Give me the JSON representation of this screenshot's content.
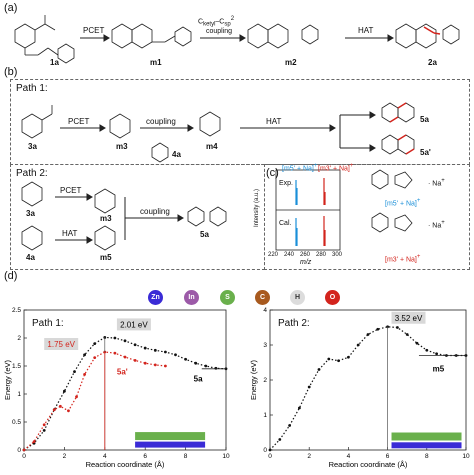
{
  "panel_labels": {
    "a": "(a)",
    "b": "(b)",
    "c": "(c)",
    "d": "(d)"
  },
  "panel_a": {
    "compounds": [
      "1a",
      "m1",
      "m2",
      "2a"
    ],
    "arrows": [
      "PCET",
      "C",
      "HAT"
    ],
    "arrow2_sub": "ketyl",
    "arrow2_mid": "–C",
    "arrow2_sub2": "sp",
    "arrow2_sup": "2",
    "arrow2_line2": "coupling"
  },
  "path1": {
    "title": "Path 1:",
    "compounds": [
      "3a",
      "m3",
      "4a",
      "m4",
      "5a",
      "5a'"
    ],
    "arrows": [
      "PCET",
      "HAT"
    ],
    "coupling_label": "coupling"
  },
  "path2": {
    "title": "Path 2:",
    "compounds": [
      "3a",
      "m3",
      "4a",
      "m5",
      "5a"
    ],
    "arrows": [
      "PCET",
      "HAT",
      "coupling"
    ]
  },
  "panel_c": {
    "legend_left": "[m5' + Na]",
    "legend_right": "[m3' + Na]",
    "legend_sup": "+",
    "row_exp": "Exp.",
    "row_cal": "Cal.",
    "ylabel": "Intensity (a.u.)",
    "xlabel": "m/z",
    "xticks": [
      "220",
      "240",
      "260",
      "280",
      "300"
    ],
    "struct1_label": "[m5' + Na]",
    "struct2_label": "[m3' + Na]",
    "na": "Na"
  },
  "atoms": [
    {
      "symbol": "Zn",
      "color": "#3a2bd6"
    },
    {
      "symbol": "In",
      "color": "#9c5aa8"
    },
    {
      "symbol": "S",
      "color": "#6ab04c"
    },
    {
      "symbol": "C",
      "color": "#a85a1f"
    },
    {
      "symbol": "H",
      "color": "#dcdcdc"
    },
    {
      "symbol": "O",
      "color": "#d3241d"
    }
  ],
  "chart_data": [
    {
      "type": "line",
      "title": "Path 1:",
      "xlabel": "Reaction coordinate (Å)",
      "ylabel": "Energy (eV)",
      "xlim": [
        0,
        10
      ],
      "ylim": [
        0,
        2.5
      ],
      "xticks": [
        0,
        2,
        4,
        6,
        8,
        10
      ],
      "yticks": [
        0,
        0.5,
        1,
        1.5,
        2,
        2.5
      ],
      "series": [
        {
          "name": "",
          "color": "#111111",
          "x": [
            0,
            0.5,
            1,
            1.5,
            2,
            2.5,
            3,
            3.5,
            4,
            4.5,
            5,
            5.5,
            6,
            6.5,
            7,
            7.5,
            8,
            8.5,
            9,
            9.5,
            10
          ],
          "y": [
            0,
            0.12,
            0.35,
            0.72,
            1.05,
            1.4,
            1.7,
            1.9,
            2.01,
            2.0,
            1.95,
            1.88,
            1.82,
            1.78,
            1.75,
            1.7,
            1.62,
            1.55,
            1.5,
            1.46,
            1.45
          ]
        },
        {
          "name": "",
          "color": "#d3241d",
          "x": [
            0,
            0.5,
            1,
            1.5,
            1.8,
            2.2,
            2.6,
            3,
            3.5,
            4,
            4.5,
            5,
            5.5,
            6,
            6.5,
            7
          ],
          "y": [
            0,
            0.15,
            0.45,
            0.72,
            0.78,
            0.7,
            0.95,
            1.35,
            1.65,
            1.75,
            1.73,
            1.66,
            1.6,
            1.55,
            1.52,
            1.5
          ]
        }
      ],
      "annotations": [
        "1.75 eV",
        "2.01 eV",
        "5a'",
        "5a"
      ]
    },
    {
      "type": "line",
      "title": "Path 2:",
      "xlabel": "Reaction coordinate (Å)",
      "ylabel": "Energy (eV)",
      "xlim": [
        0,
        10
      ],
      "ylim": [
        0,
        4
      ],
      "xticks": [
        0,
        2,
        4,
        6,
        8,
        10
      ],
      "yticks": [
        0,
        1,
        2,
        3,
        4
      ],
      "series": [
        {
          "name": "",
          "color": "#111111",
          "x": [
            0,
            0.5,
            1,
            1.5,
            2,
            2.5,
            3,
            3.5,
            4,
            4.5,
            5,
            5.5,
            6,
            6.5,
            7,
            7.5,
            8,
            8.5,
            9,
            9.5,
            10
          ],
          "y": [
            0,
            0.3,
            0.7,
            1.2,
            1.8,
            2.3,
            2.6,
            2.55,
            2.65,
            3.0,
            3.3,
            3.45,
            3.52,
            3.5,
            3.3,
            3.05,
            2.85,
            2.75,
            2.7,
            2.7,
            2.7
          ]
        }
      ],
      "annotations": [
        "3.52 eV",
        "m5"
      ]
    }
  ]
}
